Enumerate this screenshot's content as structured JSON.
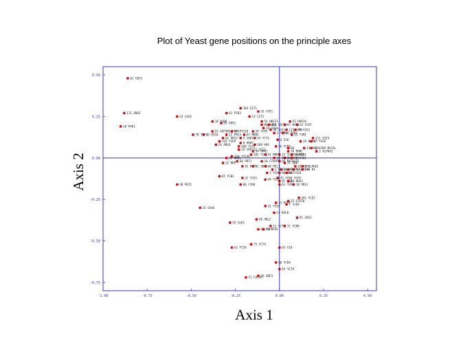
{
  "chart_data": {
    "type": "scatter",
    "title": "Plot of Yeast gene positions on the principle axes",
    "xlabel": "Axis 1",
    "ylabel": "Axis 2",
    "xlim": [
      -1.0,
      0.55
    ],
    "ylim": [
      -0.8,
      0.55
    ],
    "x_ticks": [
      -1.0,
      -0.75,
      -0.5,
      -0.25,
      0.0,
      0.25,
      0.5
    ],
    "x_tick_labels": [
      "-1.00",
      "-0.75",
      "-0.50",
      "-0.25",
      "0.00",
      "0.25",
      "0.50"
    ],
    "y_ticks": [
      0.5,
      0.25,
      0.0,
      -0.25,
      -0.5,
      -0.75
    ],
    "y_tick_labels": [
      "0.50",
      "0.25",
      "0.00",
      "-0.25",
      "-0.50",
      "-0.75"
    ],
    "colors": {
      "marker": "#cc0000",
      "axis": "#3333cc",
      "reference_line": "#3333cc",
      "text": "#000000"
    },
    "grid": false,
    "points": [
      {
        "label": "62 CBY2",
        "x": -0.86,
        "y": 0.48
      },
      {
        "label": "111 ENO2",
        "x": -0.88,
        "y": 0.27
      },
      {
        "label": "10 PGK1",
        "x": -0.9,
        "y": 0.19
      },
      {
        "label": "33 LEU2",
        "x": -0.58,
        "y": 0.25
      },
      {
        "label": "70 TEF4",
        "x": -0.49,
        "y": 0.14
      },
      {
        "label": "43 HIS4",
        "x": -0.43,
        "y": 0.14
      },
      {
        "label": "18 YCR8",
        "x": -0.38,
        "y": 0.22
      },
      {
        "label": "65 GRS1",
        "x": -0.33,
        "y": 0.21
      },
      {
        "label": "55 ASP3B3 YCP4",
        "x": -0.38,
        "y": 0.16
      },
      {
        "label": "45 PYS18",
        "x": -0.27,
        "y": 0.16
      },
      {
        "label": "61 PIR3",
        "x": -0.3,
        "y": 0.27
      },
      {
        "label": "103 GIT1",
        "x": -0.22,
        "y": 0.3
      },
      {
        "label": "16 YCR1",
        "x": -0.12,
        "y": 0.28
      },
      {
        "label": "13 CIT2",
        "x": -0.17,
        "y": 0.25
      },
      {
        "label": "54 HKE21",
        "x": -0.1,
        "y": 0.22
      },
      {
        "label": "53 RAD18",
        "x": 0.06,
        "y": 0.22
      },
      {
        "label": "88 ROK1",
        "x": -0.1,
        "y": 0.2
      },
      {
        "label": "118 CDC39",
        "x": -0.06,
        "y": 0.2
      },
      {
        "label": "87 HAT1",
        "x": 0.03,
        "y": 0.2
      },
      {
        "label": "54 YCE5",
        "x": 0.1,
        "y": 0.2
      },
      {
        "label": "58 YCR5",
        "x": -0.15,
        "y": 0.16
      },
      {
        "label": "19 CDC9",
        "x": -0.09,
        "y": 0.18
      },
      {
        "label": "38 YCE1",
        "x": -0.05,
        "y": 0.17
      },
      {
        "label": "115 YCT6",
        "x": 0.04,
        "y": 0.17
      },
      {
        "label": "89 YCE3",
        "x": 0.09,
        "y": 0.17
      },
      {
        "label": "12 PRS3",
        "x": -0.3,
        "y": 0.14
      },
      {
        "label": "67 RRN3",
        "x": -0.2,
        "y": 0.14
      },
      {
        "label": "1 YCR9",
        "x": -0.03,
        "y": 0.15
      },
      {
        "label": "88 RFB1",
        "x": 0.02,
        "y": 0.15
      },
      {
        "label": "13 TSM1",
        "x": 0.07,
        "y": 0.14
      },
      {
        "label": "62 PRS2",
        "x": -0.32,
        "y": 0.12
      },
      {
        "label": "4 CDK1",
        "x": -0.22,
        "y": 0.12
      },
      {
        "label": "53 YCT3",
        "x": -0.14,
        "y": 0.12
      },
      {
        "label": "4 SIR",
        "x": -0.01,
        "y": 0.11
      },
      {
        "label": "111 YCE5",
        "x": 0.19,
        "y": 0.12
      },
      {
        "label": "19 BUD8",
        "x": 0.12,
        "y": 0.1
      },
      {
        "label": "93 YCE8",
        "x": 0.18,
        "y": 0.1
      },
      {
        "label": "119 YCE9",
        "x": -0.34,
        "y": 0.1
      },
      {
        "label": "26 ARG4",
        "x": -0.36,
        "y": 0.08
      },
      {
        "label": "8 RRN7",
        "x": -0.22,
        "y": 0.09
      },
      {
        "label": "100 YCE5",
        "x": -0.23,
        "y": 0.07
      },
      {
        "label": "109 VHS",
        "x": -0.14,
        "y": 0.08
      },
      {
        "label": "50 YCE8",
        "x": -0.02,
        "y": 0.07
      },
      {
        "label": "88",
        "x": 0.05,
        "y": 0.06
      },
      {
        "label": "13 YCE8",
        "x": 0.14,
        "y": 0.06
      },
      {
        "label": "51 SFB9 MATAL",
        "x": 0.18,
        "y": 0.06
      },
      {
        "label": "24 CRP313 YCT1",
        "x": -0.23,
        "y": 0.05
      },
      {
        "label": "70 RRN1",
        "x": 0.05,
        "y": 0.04
      },
      {
        "label": "3 ALPHA2",
        "x": 0.21,
        "y": 0.04
      },
      {
        "label": "34 RRN1",
        "x": -0.15,
        "y": 0.04
      },
      {
        "label": "101 YCH1",
        "x": -0.16,
        "y": 0.02
      },
      {
        "label": "41 RMP1",
        "x": -0.08,
        "y": 0.02
      },
      {
        "label": "15 YCE8 CWH32",
        "x": 0.0,
        "y": 0.02
      },
      {
        "label": "89 GNS1",
        "x": 0.07,
        "y": 0.02
      },
      {
        "label": "110 YCE40",
        "x": -0.27,
        "y": 0.01
      },
      {
        "label": "98 YCE5",
        "x": 0.03,
        "y": 0.0
      },
      {
        "label": "16 VAK1",
        "x": -0.03,
        "y": 0.0
      },
      {
        "label": "80 HHO1",
        "x": 0.07,
        "y": 0.0
      },
      {
        "label": "35 NRB1",
        "x": -0.3,
        "y": 0.0
      },
      {
        "label": "44 PRT1",
        "x": -0.24,
        "y": -0.02
      },
      {
        "label": "10 CTNYP8",
        "x": -0.1,
        "y": -0.02
      },
      {
        "label": "60 MATALP3",
        "x": 0.0,
        "y": -0.02
      },
      {
        "label": "21 EBN",
        "x": 0.03,
        "y": -0.03
      },
      {
        "label": "12 RRP",
        "x": -0.32,
        "y": -0.03
      },
      {
        "label": "92 RAT1",
        "x": -0.21,
        "y": -0.05
      },
      {
        "label": "51 SDH3",
        "x": -0.15,
        "y": -0.05
      },
      {
        "label": "40 PEL1",
        "x": -0.08,
        "y": -0.05
      },
      {
        "label": "43 YCF1",
        "x": 0.09,
        "y": -0.05
      },
      {
        "label": "8 ALPHA1",
        "x": 0.13,
        "y": -0.05
      },
      {
        "label": "1 RRS54",
        "x": -0.04,
        "y": -0.07
      },
      {
        "label": "13 YCR8",
        "x": 0.01,
        "y": -0.07
      },
      {
        "label": "92 YRC4",
        "x": 0.05,
        "y": -0.07
      },
      {
        "label": "52 HRS10",
        "x": 0.08,
        "y": -0.07
      },
      {
        "label": "101 HI",
        "x": 0.13,
        "y": -0.07
      },
      {
        "label": "1 YCE7",
        "x": -0.07,
        "y": -0.09
      },
      {
        "label": "96 NDG5",
        "x": 0.0,
        "y": -0.09
      },
      {
        "label": "84 YCE8",
        "x": 0.04,
        "y": -0.09
      },
      {
        "label": "85 YCB1",
        "x": -0.34,
        "y": -0.11
      },
      {
        "label": "22 YCE5",
        "x": -0.21,
        "y": -0.12
      },
      {
        "label": "35 YCB8 YCE9",
        "x": -0.01,
        "y": -0.12
      },
      {
        "label": "94 YCE5",
        "x": -0.08,
        "y": -0.13
      },
      {
        "label": "97 NRB1",
        "x": 0.0,
        "y": -0.14
      },
      {
        "label": "13 HOS3",
        "x": 0.05,
        "y": -0.14
      },
      {
        "label": "86 CYE8",
        "x": -0.22,
        "y": -0.16
      },
      {
        "label": "61 YCR1",
        "x": 0.0,
        "y": -0.16
      },
      {
        "label": "18 PDS1",
        "x": 0.08,
        "y": -0.16
      },
      {
        "label": "38 PEI1",
        "x": -0.58,
        "y": -0.16
      },
      {
        "label": "201 YCE2",
        "x": 0.11,
        "y": -0.24
      },
      {
        "label": "25 GTE58",
        "x": 0.05,
        "y": -0.26
      },
      {
        "label": "23 RIX1",
        "x": -0.02,
        "y": -0.27
      },
      {
        "label": "7 YCE9",
        "x": 0.04,
        "y": -0.28
      },
      {
        "label": "31 YCE4",
        "x": -0.08,
        "y": -0.29
      },
      {
        "label": "35 SAV6",
        "x": -0.45,
        "y": -0.3
      },
      {
        "label": "11 RSC8",
        "x": -0.03,
        "y": -0.33
      },
      {
        "label": "91 LRS2",
        "x": 0.1,
        "y": -0.36
      },
      {
        "label": "38 SBL2",
        "x": -0.13,
        "y": -0.37
      },
      {
        "label": "19 GLK1",
        "x": -0.28,
        "y": -0.39
      },
      {
        "label": "11 YCT1",
        "x": -0.05,
        "y": -0.41
      },
      {
        "label": "31 YCR8",
        "x": 0.03,
        "y": -0.41
      },
      {
        "label": "63 YCE5",
        "x": -0.12,
        "y": -0.43
      },
      {
        "label": "24 YCE5",
        "x": -0.09,
        "y": -0.43
      },
      {
        "label": "75 YCT9",
        "x": -0.16,
        "y": -0.52
      },
      {
        "label": "61 YCS9",
        "x": -0.27,
        "y": -0.54
      },
      {
        "label": "63 G10",
        "x": 0.0,
        "y": -0.54
      },
      {
        "label": "90 YCE8",
        "x": -0.02,
        "y": -0.63
      },
      {
        "label": "54 YCT9",
        "x": 0.0,
        "y": -0.67
      },
      {
        "label": "71 FUYCR",
        "x": -0.19,
        "y": -0.72
      },
      {
        "label": "18 ARE3",
        "x": -0.12,
        "y": -0.71
      }
    ]
  }
}
